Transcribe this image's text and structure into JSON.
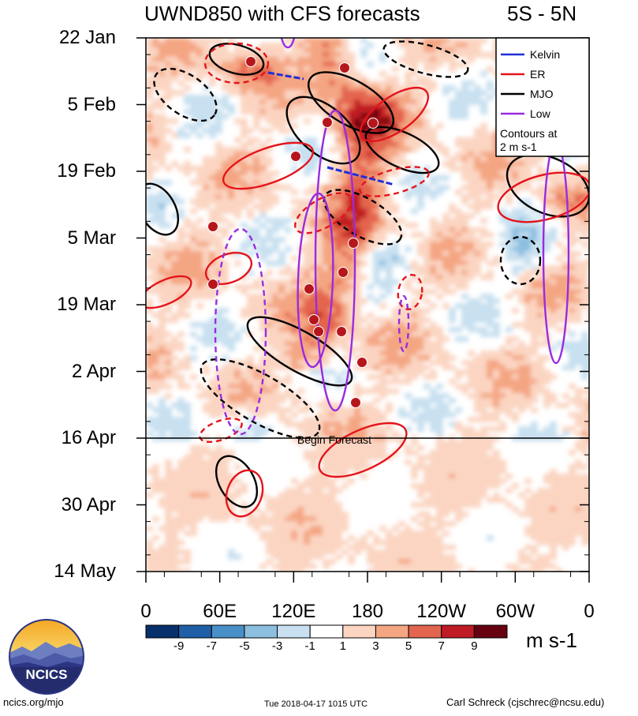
{
  "header": {
    "title": "UWND850 with CFS forecasts",
    "region": "5S - 5N"
  },
  "chart_data": {
    "type": "heatmap",
    "title": "UWND850 with CFS forecasts",
    "y_ticks": [
      "22 Jan",
      "5 Feb",
      "19 Feb",
      "5 Mar",
      "19 Mar",
      "2 Apr",
      "16 Apr",
      "30 Apr",
      "14 May"
    ],
    "x_ticks": [
      "0",
      "60E",
      "120E",
      "180",
      "120W",
      "60W",
      "0"
    ],
    "colorbar": {
      "units": "m s-1",
      "labels": [
        "-9",
        "-7",
        "-5",
        "-3",
        "-1",
        "1",
        "3",
        "5",
        "7",
        "9"
      ],
      "colors": [
        "#08306b",
        "#1f5fa8",
        "#4a90c8",
        "#8cbfe0",
        "#c8e0f0",
        "#ffffff",
        "#fbd5c2",
        "#f4a683",
        "#e4654e",
        "#c01a24",
        "#670010"
      ]
    },
    "legend": {
      "placement": "top-right",
      "items": [
        {
          "name": "Kelvin",
          "color": "#1f2fd8"
        },
        {
          "name": "ER",
          "color": "#e4141c"
        },
        {
          "name": "MJO",
          "color": "#000000"
        },
        {
          "name": "Low",
          "color": "#9a2be0"
        }
      ],
      "note": "Contours at\n2 m s-1"
    },
    "forecast_line_label": "Begin Forecast",
    "forecast_start": "16 Apr"
  },
  "footer": {
    "left": "ncics.org/mjo",
    "center": "Tue 2018-04-17 1015 UTC",
    "right": "Carl Schreck (cjschrec@ncsu.edu)",
    "logo_text": "NCICS"
  }
}
